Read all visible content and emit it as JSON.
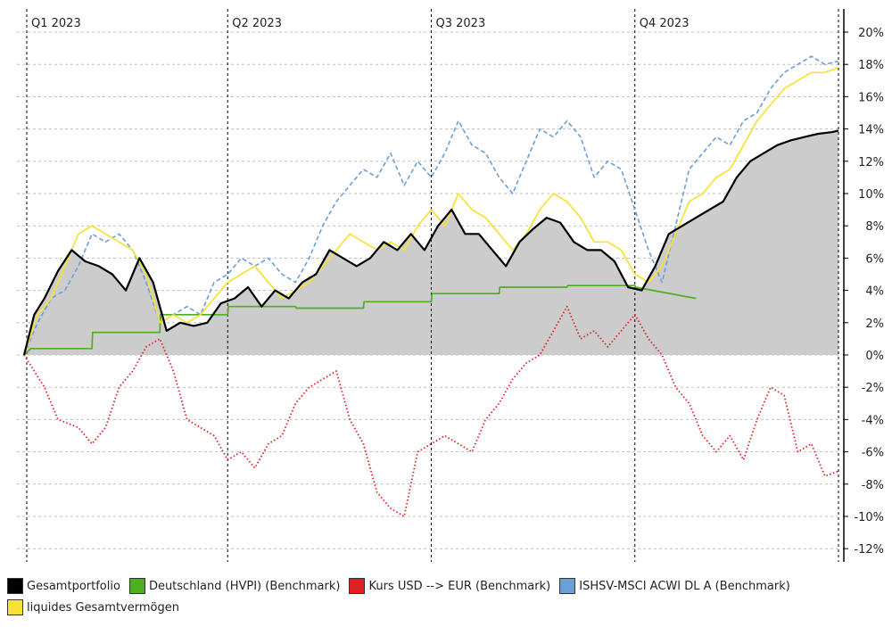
{
  "chart_data": {
    "type": "line",
    "title": "",
    "xlabel": "",
    "ylabel": "",
    "x_range": [
      0,
      12
    ],
    "ylim": [
      -12,
      20
    ],
    "y_ticks": [
      "20%",
      "18%",
      "16%",
      "14%",
      "12%",
      "10%",
      "8%",
      "6%",
      "4%",
      "2%",
      "0%",
      "-2%",
      "-4%",
      "-6%",
      "-8%",
      "-10%",
      "-12%"
    ],
    "y_tick_values": [
      20,
      18,
      16,
      14,
      12,
      10,
      8,
      6,
      4,
      2,
      0,
      -2,
      -4,
      -6,
      -8,
      -10,
      -12
    ],
    "quarters": [
      {
        "label": "Q1 2023",
        "x": 0
      },
      {
        "label": "Q2 2023",
        "x": 3
      },
      {
        "label": "Q3 2023",
        "x": 6
      },
      {
        "label": "Q4 2023",
        "x": 9
      }
    ],
    "grid": true,
    "legend_position": "bottom",
    "series": [
      {
        "name": "Gesamtportfolio",
        "color": "#000000",
        "style": "solid-area",
        "x": [
          0,
          0.15,
          0.3,
          0.5,
          0.7,
          0.9,
          1.1,
          1.3,
          1.5,
          1.7,
          1.9,
          2.1,
          2.3,
          2.5,
          2.7,
          2.9,
          3.1,
          3.3,
          3.5,
          3.7,
          3.9,
          4.1,
          4.3,
          4.5,
          4.7,
          4.9,
          5.1,
          5.3,
          5.5,
          5.7,
          5.9,
          6.1,
          6.3,
          6.5,
          6.7,
          6.9,
          7.1,
          7.3,
          7.5,
          7.7,
          7.9,
          8.1,
          8.3,
          8.5,
          8.7,
          8.9,
          9.1,
          9.3,
          9.5,
          9.7,
          9.9,
          10.1,
          10.3,
          10.5,
          10.7,
          10.9,
          11.1,
          11.3,
          11.5,
          11.7,
          11.9,
          12.0
        ],
        "y": [
          0,
          2.5,
          3.5,
          5.2,
          6.5,
          5.8,
          5.5,
          5.0,
          4.0,
          6.0,
          4.5,
          1.5,
          2.0,
          1.8,
          2.0,
          3.2,
          3.5,
          4.2,
          3.0,
          4.0,
          3.5,
          4.5,
          5.0,
          6.5,
          6.0,
          5.5,
          6.0,
          7.0,
          6.5,
          7.5,
          6.5,
          8.0,
          9.0,
          7.5,
          7.5,
          6.5,
          5.5,
          7.0,
          7.8,
          8.5,
          8.2,
          7.0,
          6.5,
          6.5,
          5.8,
          4.2,
          4.0,
          5.5,
          7.5,
          8.0,
          8.5,
          9.0,
          9.5,
          11.0,
          12.0,
          12.5,
          13.0,
          13.3,
          13.5,
          13.7,
          13.8,
          13.9
        ]
      },
      {
        "name": "Deutschland (HVPI) (Benchmark)",
        "color": "#4caf1f",
        "style": "solid",
        "x": [
          0,
          0.1,
          1.0,
          1.01,
          2.0,
          2.01,
          3.0,
          3.01,
          4.0,
          4.01,
          5.0,
          5.01,
          6.0,
          6.01,
          7.0,
          7.01,
          8.0,
          8.01,
          9.0,
          9.01,
          9.9
        ],
        "y": [
          0,
          0.4,
          0.4,
          1.4,
          1.4,
          2.5,
          2.5,
          3.0,
          3.0,
          2.9,
          2.9,
          3.3,
          3.3,
          3.8,
          3.8,
          4.2,
          4.2,
          4.3,
          4.3,
          4.2,
          3.5
        ]
      },
      {
        "name": "Kurs USD --> EUR (Benchmark)",
        "color": "#e02020",
        "style": "dotted",
        "x": [
          0,
          0.3,
          0.5,
          0.8,
          1.0,
          1.2,
          1.4,
          1.6,
          1.8,
          2.0,
          2.2,
          2.4,
          2.6,
          2.8,
          3.0,
          3.2,
          3.4,
          3.6,
          3.8,
          4.0,
          4.2,
          4.4,
          4.6,
          4.8,
          5.0,
          5.2,
          5.4,
          5.6,
          5.8,
          6.0,
          6.2,
          6.4,
          6.6,
          6.8,
          7.0,
          7.2,
          7.4,
          7.6,
          7.8,
          8.0,
          8.2,
          8.4,
          8.6,
          8.8,
          9.0,
          9.2,
          9.4,
          9.6,
          9.8,
          10.0,
          10.2,
          10.4,
          10.6,
          10.8,
          11.0,
          11.2,
          11.4,
          11.6,
          11.8,
          12.0
        ],
        "y": [
          0,
          -2.0,
          -4.0,
          -4.5,
          -5.5,
          -4.5,
          -2.0,
          -1.0,
          0.5,
          1.0,
          -1.0,
          -4.0,
          -4.5,
          -5.0,
          -6.5,
          -6.0,
          -7.0,
          -5.5,
          -5.0,
          -3.0,
          -2.0,
          -1.5,
          -1.0,
          -4.0,
          -5.5,
          -8.5,
          -9.5,
          -10.0,
          -6.0,
          -5.5,
          -5.0,
          -5.5,
          -6.0,
          -4.0,
          -3.0,
          -1.5,
          -0.5,
          0,
          1.5,
          3.0,
          1.0,
          1.5,
          0.5,
          1.5,
          2.5,
          1.0,
          0,
          -2.0,
          -3.0,
          -5.0,
          -6.0,
          -5.0,
          -6.5,
          -4.0,
          -2.0,
          -2.5,
          -6.0,
          -5.5,
          -7.5,
          -7.2
        ]
      },
      {
        "name": "ISHSV-MSCI ACWI DL A (Benchmark)",
        "color": "#6a9fd8",
        "style": "dashed",
        "x": [
          0,
          0.2,
          0.4,
          0.6,
          0.8,
          1.0,
          1.2,
          1.4,
          1.6,
          1.8,
          2.0,
          2.2,
          2.4,
          2.6,
          2.8,
          3.0,
          3.2,
          3.4,
          3.6,
          3.8,
          4.0,
          4.2,
          4.4,
          4.6,
          4.8,
          5.0,
          5.2,
          5.4,
          5.6,
          5.8,
          6.0,
          6.2,
          6.4,
          6.6,
          6.8,
          7.0,
          7.2,
          7.4,
          7.6,
          7.8,
          8.0,
          8.2,
          8.4,
          8.6,
          8.8,
          9.0,
          9.2,
          9.4,
          9.6,
          9.8,
          10.0,
          10.2,
          10.4,
          10.6,
          10.8,
          11.0,
          11.2,
          11.4,
          11.6,
          11.8,
          12.0
        ],
        "y": [
          0,
          2.0,
          3.5,
          4.0,
          5.5,
          7.5,
          7.0,
          7.5,
          6.5,
          4.5,
          2.0,
          2.5,
          3.0,
          2.5,
          4.5,
          5.0,
          6.0,
          5.5,
          6.0,
          5.0,
          4.5,
          6.0,
          8.0,
          9.5,
          10.5,
          11.5,
          11.0,
          12.5,
          10.5,
          12.0,
          11.0,
          12.5,
          14.5,
          13.0,
          12.5,
          11.0,
          10.0,
          12.0,
          14.0,
          13.5,
          14.5,
          13.5,
          11.0,
          12.0,
          11.5,
          9.0,
          6.5,
          4.5,
          8.0,
          11.5,
          12.5,
          13.5,
          13.0,
          14.5,
          15.0,
          16.5,
          17.5,
          18.0,
          18.5,
          18.0,
          18.2
        ]
      },
      {
        "name": "liquides Gesamtvermögen",
        "color": "#f5e233",
        "style": "solid",
        "x": [
          0,
          0.2,
          0.4,
          0.6,
          0.8,
          1.0,
          1.2,
          1.4,
          1.6,
          1.8,
          2.0,
          2.2,
          2.4,
          2.6,
          2.8,
          3.0,
          3.2,
          3.4,
          3.6,
          3.8,
          4.0,
          4.2,
          4.4,
          4.6,
          4.8,
          5.0,
          5.2,
          5.4,
          5.6,
          5.8,
          6.0,
          6.2,
          6.4,
          6.6,
          6.8,
          7.0,
          7.2,
          7.4,
          7.6,
          7.8,
          8.0,
          8.2,
          8.4,
          8.6,
          8.8,
          9.0,
          9.2,
          9.4,
          9.6,
          9.8,
          10.0,
          10.2,
          10.4,
          10.6,
          10.8,
          11.0,
          11.2,
          11.4,
          11.6,
          11.8,
          12.0
        ],
        "y": [
          0,
          2.5,
          3.5,
          5.5,
          7.5,
          8.0,
          7.5,
          7.0,
          6.5,
          5.0,
          2.0,
          2.5,
          2.0,
          2.5,
          3.5,
          4.5,
          5.0,
          5.5,
          4.5,
          3.5,
          4.0,
          4.5,
          5.5,
          6.5,
          7.5,
          7.0,
          6.5,
          7.0,
          6.5,
          8.0,
          9.0,
          8.0,
          10.0,
          9.0,
          8.5,
          7.5,
          6.5,
          7.5,
          9.0,
          10.0,
          9.5,
          8.5,
          7.0,
          7.0,
          6.5,
          5.0,
          4.5,
          5.5,
          7.5,
          9.5,
          10.0,
          11.0,
          11.5,
          13.0,
          14.5,
          15.5,
          16.5,
          17.0,
          17.5,
          17.5,
          17.8
        ]
      }
    ]
  }
}
